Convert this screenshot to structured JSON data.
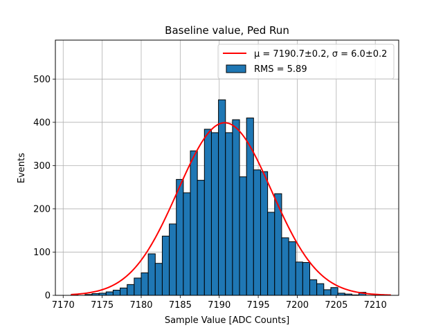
{
  "chart_data": {
    "type": "bar",
    "title": "Baseline value, Ped Run",
    "xlabel": "Sample Value [ADC Counts]",
    "ylabel": "Events",
    "xlim": [
      7169,
      7213
    ],
    "ylim": [
      0,
      590
    ],
    "xticks": [
      "7170",
      "7175",
      "7180",
      "7185",
      "7190",
      "7195",
      "7200",
      "7205",
      "7210"
    ],
    "yticks": [
      "0",
      "100",
      "200",
      "300",
      "400",
      "500"
    ],
    "grid": true,
    "legend_placement": "top-right",
    "series": [
      {
        "name": "RMS = 5.89",
        "kind": "histogram",
        "color": "#1f77b4",
        "edgecolor": "#000000",
        "bin_edges": [
          7171.0,
          7171.9,
          7172.8,
          7173.7,
          7174.6,
          7175.5,
          7176.4,
          7177.3,
          7178.2,
          7179.1,
          7180.0,
          7180.9,
          7181.8,
          7182.7,
          7183.6,
          7184.5,
          7185.4,
          7186.3,
          7187.2,
          7188.1,
          7189.0,
          7189.9,
          7190.8,
          7191.7,
          7192.6,
          7193.5,
          7194.4,
          7195.3,
          7196.2,
          7197.1,
          7198.0,
          7198.9,
          7199.8,
          7200.7,
          7201.6,
          7202.5,
          7203.4,
          7204.3,
          7205.2,
          7206.1,
          7207.0,
          7207.9,
          7208.8,
          7209.7,
          7210.6,
          7211.5
        ],
        "counts": [
          1,
          0,
          2,
          4,
          5,
          8,
          12,
          17,
          25,
          40,
          52,
          96,
          74,
          137,
          165,
          268,
          237,
          334,
          266,
          384,
          376,
          452,
          376,
          406,
          274,
          410,
          290,
          286,
          192,
          235,
          133,
          124,
          77,
          76,
          36,
          27,
          13,
          18,
          5,
          3,
          1,
          7,
          0,
          0,
          0
        ]
      },
      {
        "name": "μ = 7190.7±0.2, σ = 6.0±0.2",
        "kind": "gaussian_fit",
        "color": "#ff0000",
        "mu": 7190.7,
        "sigma": 6.0,
        "amplitude": 399,
        "x_range": [
          7171,
          7212
        ]
      }
    ]
  }
}
